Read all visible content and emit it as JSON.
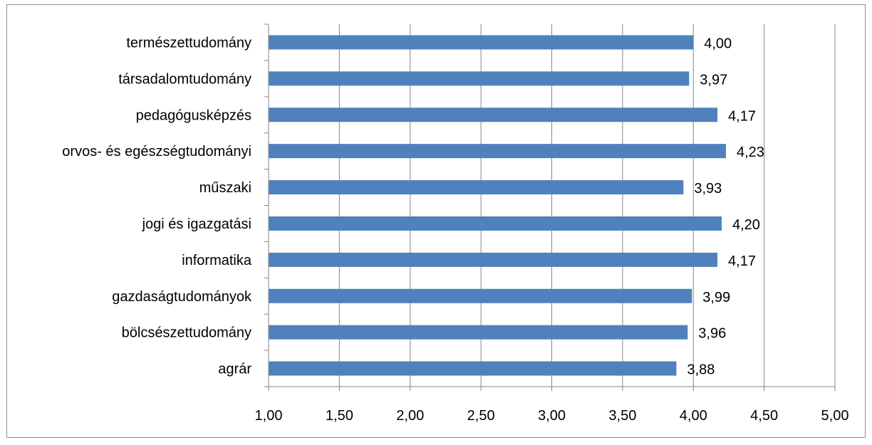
{
  "chart_data": {
    "type": "bar",
    "orientation": "horizontal",
    "categories": [
      "természettudomány",
      "társadalomtudomány",
      "pedagógusképzés",
      "orvos- és egészségtudományi",
      "műszaki",
      "jogi és igazgatási",
      "informatika",
      "gazdaságtudományok",
      "bölcsészettudomány",
      "agrár"
    ],
    "values": [
      4.0,
      3.97,
      4.17,
      4.23,
      3.93,
      4.2,
      4.17,
      3.99,
      3.96,
      3.88
    ],
    "value_labels": [
      "4,00",
      "3,97",
      "4,17",
      "4,23",
      "3,93",
      "4,20",
      "4,17",
      "3,99",
      "3,96",
      "3,88"
    ],
    "xlim": [
      1.0,
      5.0
    ],
    "x_ticks": [
      1.0,
      1.5,
      2.0,
      2.5,
      3.0,
      3.5,
      4.0,
      4.5,
      5.0
    ],
    "x_tick_labels": [
      "1,00",
      "1,50",
      "2,00",
      "2,50",
      "3,00",
      "3,50",
      "4,00",
      "4,50",
      "5,00"
    ],
    "title": "",
    "xlabel": "",
    "ylabel": "",
    "grid": "vertical",
    "legend": "none",
    "colors": {
      "bar": "#4f81bd",
      "grid": "#868686",
      "axis": "#868686",
      "frame": "#8c8c8c"
    }
  }
}
